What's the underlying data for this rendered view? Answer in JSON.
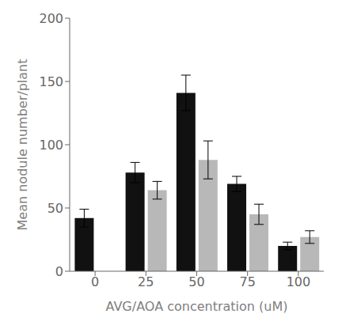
{
  "chart_data": {
    "type": "bar",
    "xlabel": "AVG/AOA concentration (uM)",
    "ylabel": "Mean nodule number/plant",
    "categories": [
      "0",
      "25",
      "50",
      "75",
      "100"
    ],
    "series": [
      {
        "color": "#111111",
        "values": [
          42,
          78,
          141,
          69,
          20
        ],
        "errors": [
          7,
          8,
          14,
          6,
          3
        ]
      },
      {
        "color": "#b8b8b8",
        "values": [
          null,
          64,
          88,
          45,
          27
        ],
        "errors": [
          null,
          7,
          15,
          8,
          5
        ]
      }
    ],
    "ylim": [
      0,
      200
    ],
    "yticks": [
      0,
      50,
      100,
      150,
      200
    ],
    "grid": false
  }
}
